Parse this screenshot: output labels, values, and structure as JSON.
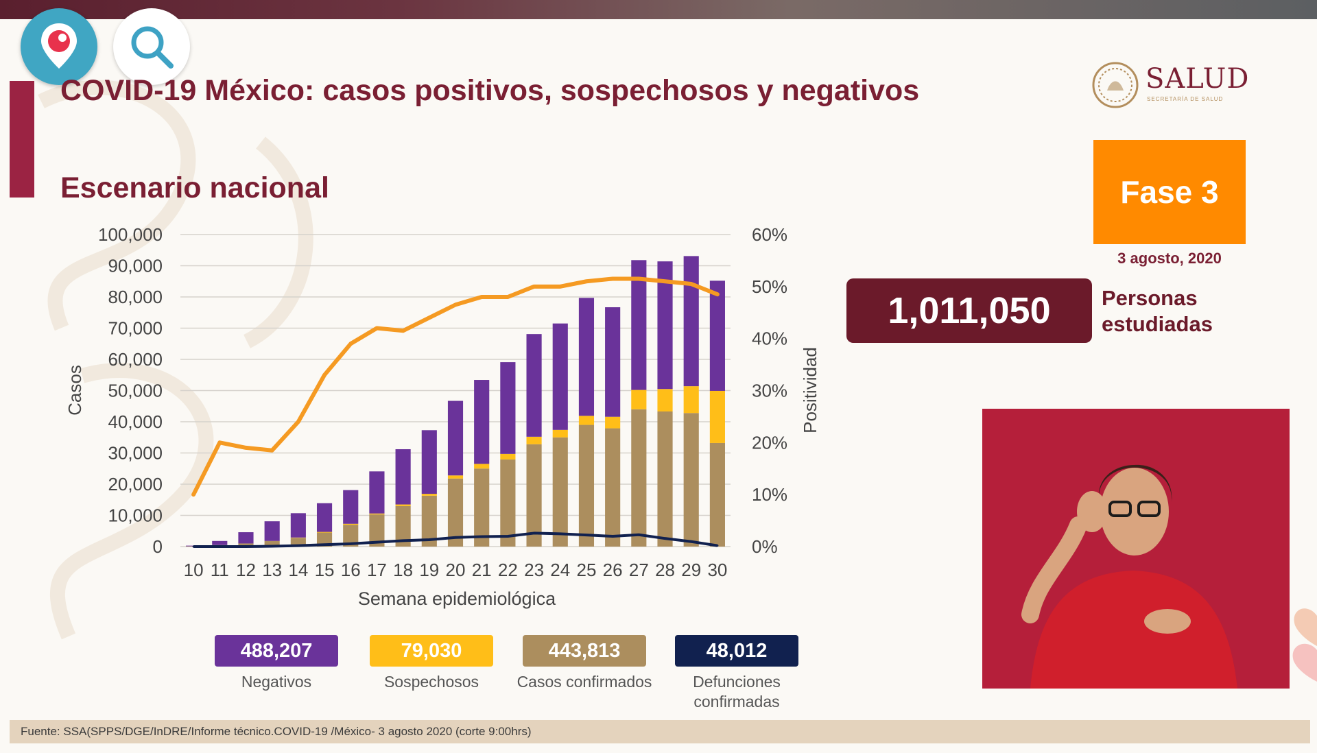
{
  "header": {
    "title": "COVID-19 México: casos positivos, sospechosos y negativos",
    "subtitle": "Escenario nacional"
  },
  "logo": {
    "text": "SALUD",
    "subtext": "SECRETARÍA DE SALUD"
  },
  "phase": {
    "label": "Fase 3",
    "date": "3 agosto, 2020"
  },
  "studied": {
    "value": "1,011,050",
    "label_line1": "Personas",
    "label_line2": "estudiadas"
  },
  "colors": {
    "negativos": "#6a339a",
    "sospechosos": "#ffbe18",
    "confirmados": "#ac8e5e",
    "defunciones": "#11214f",
    "positividad": "#f59a22",
    "title": "#7a1f33"
  },
  "summary": [
    {
      "key": "negativos",
      "value": "488,207",
      "label": "Negativos",
      "color": "#6a339a"
    },
    {
      "key": "sospechosos",
      "value": "79,030",
      "label": "Sospechosos",
      "color": "#ffbe18"
    },
    {
      "key": "confirmados",
      "value": "443,813",
      "label": "Casos confirmados",
      "color": "#ac8e5e"
    },
    {
      "key": "defunciones",
      "value": "48,012",
      "label": "Defunciones confirmadas",
      "color": "#11214f"
    }
  ],
  "footer": {
    "source": "Fuente: SSA(SPPS/DGE/InDRE/Informe técnico.COVID-19 /México- 3 agosto 2020 (corte 9:00hrs)"
  },
  "icons": {
    "periscope": "periscope-pin-icon",
    "search": "search-icon"
  },
  "chart_data": {
    "type": "bar",
    "stacked": true,
    "xlabel": "Semana epidemiológica",
    "ylabel": "Casos",
    "y2label": "Positividad",
    "ylim": [
      0,
      100000
    ],
    "y2lim": [
      0,
      60
    ],
    "yticks": [
      "0",
      "10,000",
      "20,000",
      "30,000",
      "40,000",
      "50,000",
      "60,000",
      "70,000",
      "80,000",
      "90,000",
      "100,000"
    ],
    "y2ticks": [
      "0%",
      "10%",
      "20%",
      "30%",
      "40%",
      "50%",
      "60%"
    ],
    "categories": [
      "10",
      "11",
      "12",
      "13",
      "14",
      "15",
      "16",
      "17",
      "18",
      "19",
      "20",
      "21",
      "22",
      "23",
      "24",
      "25",
      "26",
      "27",
      "28",
      "29",
      "30"
    ],
    "grid": true,
    "series": [
      {
        "name": "Casos confirmados",
        "kind": "bar",
        "values": [
          100,
          500,
          1000,
          1800,
          2800,
          4500,
          7000,
          10300,
          13000,
          16300,
          21800,
          25000,
          27900,
          32800,
          35000,
          39000,
          37900,
          44000,
          43300,
          42800,
          33200
        ]
      },
      {
        "name": "Sospechosos",
        "kind": "bar",
        "values": [
          0,
          0,
          0,
          0,
          100,
          200,
          300,
          300,
          500,
          600,
          1000,
          1500,
          1800,
          2400,
          2400,
          2900,
          3700,
          6200,
          7200,
          8600,
          16700
        ]
      },
      {
        "name": "Negativos",
        "kind": "bar",
        "values": [
          200,
          1300,
          3600,
          6300,
          7800,
          9200,
          10800,
          13500,
          17700,
          20400,
          23900,
          26900,
          29400,
          32900,
          34100,
          37800,
          35100,
          41600,
          40900,
          41700,
          35300
        ]
      },
      {
        "name": "Defunciones confirmadas",
        "kind": "line",
        "axis": "left",
        "values": [
          0,
          0,
          0,
          100,
          300,
          600,
          900,
          1400,
          1900,
          2200,
          2900,
          3200,
          3300,
          4300,
          4100,
          3700,
          3300,
          3800,
          2600,
          1600,
          300
        ]
      },
      {
        "name": "Positividad",
        "kind": "line",
        "axis": "right",
        "values": [
          10,
          20,
          19,
          18.5,
          24,
          33,
          39,
          42,
          41.5,
          44,
          46.5,
          48,
          48,
          50,
          50,
          51,
          51.5,
          51.5,
          51,
          50.5,
          48.5
        ]
      }
    ]
  }
}
